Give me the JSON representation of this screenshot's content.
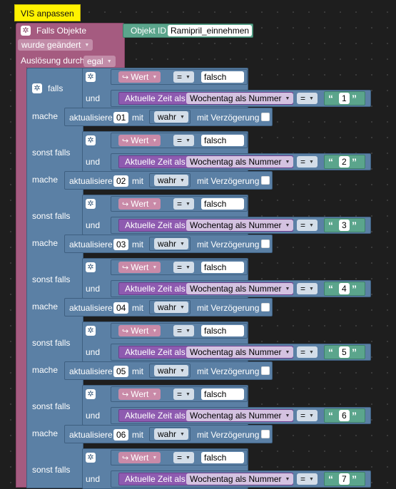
{
  "comment": "VIS anpassen",
  "trigger": {
    "header": "Falls Objekte",
    "objekt_id_label": "Objekt ID",
    "objekt_id_value": "Ramipril_einnehmen",
    "event": "wurde geändert",
    "ausloesung_label": "Auslösung durch",
    "ausloesung_value": "egal"
  },
  "labels": {
    "falls": "falls",
    "sonst_falls": "sonst falls",
    "mache": "mache",
    "und": "und",
    "aktualisiere": "aktualisiere",
    "mit": "mit",
    "mit_verzoegerung": "mit Verzögerung",
    "aktuelle_zeit_als": "Aktuelle Zeit als",
    "wochentag": "Wochentag als Nummer",
    "wert": "Wert",
    "eq": "=",
    "falsch": "falsch",
    "wahr": "wahr"
  },
  "rows": [
    {
      "day": "1",
      "target": "01"
    },
    {
      "day": "2",
      "target": "02"
    },
    {
      "day": "3",
      "target": "03"
    },
    {
      "day": "4",
      "target": "04"
    },
    {
      "day": "5",
      "target": "05"
    },
    {
      "day": "6",
      "target": "06"
    },
    {
      "day": "7",
      "target": ""
    }
  ]
}
